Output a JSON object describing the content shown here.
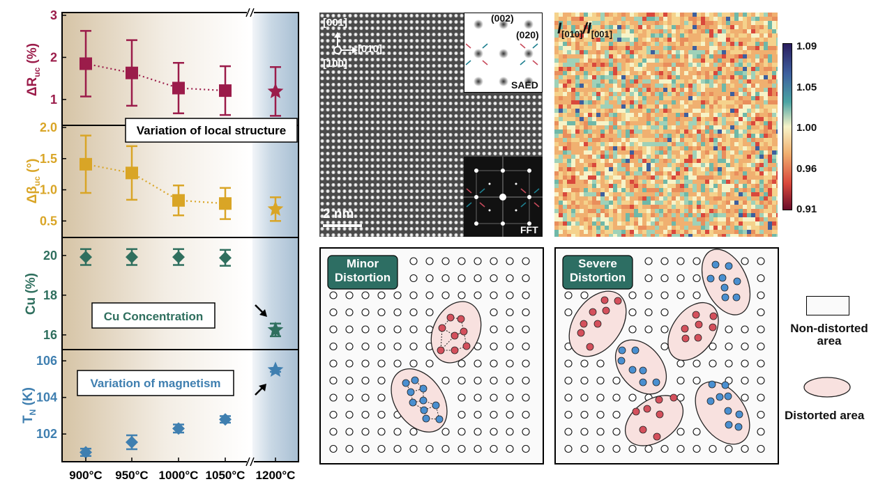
{
  "colors": {
    "r": "#9b1c4a",
    "b": "#d9a526",
    "cu": "#2f6f5e",
    "tn": "#3f7fb0",
    "teal": "#2d6e63",
    "red_atom": "#d4505c",
    "blue_atom": "#4a8fd0",
    "ellipse_fill": "#f8e1df"
  },
  "chart_data": [
    {
      "type": "scatter",
      "panel": "R_uc",
      "ylabel": "ΔR_uc (%)",
      "categories": [
        "900°C",
        "950°C",
        "1000°C",
        "1050°C",
        "1200°C"
      ],
      "values": [
        1.85,
        1.63,
        1.27,
        1.21,
        1.19
      ],
      "err": [
        0.78,
        0.78,
        0.6,
        0.58,
        0.58
      ],
      "marker": [
        "square",
        "square",
        "square",
        "square",
        "star"
      ],
      "ylim": [
        0.45,
        3.0
      ],
      "yticks": [
        "1",
        "2",
        "3"
      ]
    },
    {
      "type": "scatter",
      "panel": "beta_uc",
      "ylabel": "Δβ_uc (°)",
      "categories": [
        "900°C",
        "950°C",
        "1000°C",
        "1050°C",
        "1200°C"
      ],
      "values": [
        1.41,
        1.27,
        0.83,
        0.78,
        0.69
      ],
      "err": [
        0.46,
        0.43,
        0.24,
        0.25,
        0.19
      ],
      "marker": [
        "square",
        "square",
        "square",
        "square",
        "star"
      ],
      "ylim": [
        0.28,
        2.0
      ],
      "yticks": [
        "0.5",
        "1.0",
        "1.5",
        "2.0"
      ]
    },
    {
      "type": "scatter",
      "panel": "Cu",
      "ylabel": "Cu (%)",
      "categories": [
        "900°C",
        "950°C",
        "1000°C",
        "1050°C",
        "1200°C"
      ],
      "values": [
        19.92,
        19.92,
        19.92,
        19.88,
        16.25
      ],
      "err": [
        0.4,
        0.4,
        0.4,
        0.4,
        0.32
      ],
      "marker": [
        "diamond",
        "diamond",
        "diamond",
        "diamond",
        "star"
      ],
      "ylim": [
        15.4,
        20.8
      ],
      "yticks": [
        "16",
        "18",
        "20"
      ]
    },
    {
      "type": "scatter",
      "panel": "TN",
      "ylabel": "T_N (K)",
      "categories": [
        "900°C",
        "950°C",
        "1000°C",
        "1050°C",
        "1200°C"
      ],
      "values": [
        101.0,
        101.55,
        102.3,
        102.8,
        105.5
      ],
      "err": [
        0.2,
        0.38,
        0.22,
        0.18,
        0.1
      ],
      "marker": [
        "diamond",
        "diamond",
        "diamond",
        "diamond",
        "star"
      ],
      "ylim": [
        100.6,
        106.5
      ],
      "yticks": [
        "102",
        "104",
        "106"
      ]
    }
  ],
  "labels": {
    "r_axis": "ΔR",
    "r_sub": "uc",
    "r_unit": " (%)",
    "b_axis": "Δβ",
    "b_sub": "uc",
    "b_unit": " (°)",
    "cu_axis": "Cu (%)",
    "tn_axis": "T",
    "tn_sub": "N",
    "tn_unit": " (K)",
    "box_structure": "Variation of local structure",
    "box_cu": "Cu Concentration",
    "box_magnet": "Variation of magnetism",
    "x_ticks": [
      "900°C",
      "950°C",
      "1000°C",
      "1050°C",
      "1200°C"
    ]
  },
  "stem": {
    "dir_001": "[001]",
    "dir_010": "[010]",
    "dir_100": "[100]",
    "scale": "2 nm",
    "saed": "SAED",
    "fft": "FFT",
    "spot_002": "(002)",
    "spot_020": "(020)"
  },
  "map": {
    "title_i1": "I",
    "title_s1": "[010]",
    "title_slash": "/",
    "title_i2": "I",
    "title_s2": "[001]",
    "colorbar_ticks": [
      "1.09",
      "1.05",
      "1.00",
      "0.96",
      "0.91"
    ]
  },
  "schematic": {
    "minor": "Minor Distortion",
    "severe": "Severe Distortion",
    "legend_non": "Non-distorted area",
    "legend_dist": "Distorted area"
  }
}
